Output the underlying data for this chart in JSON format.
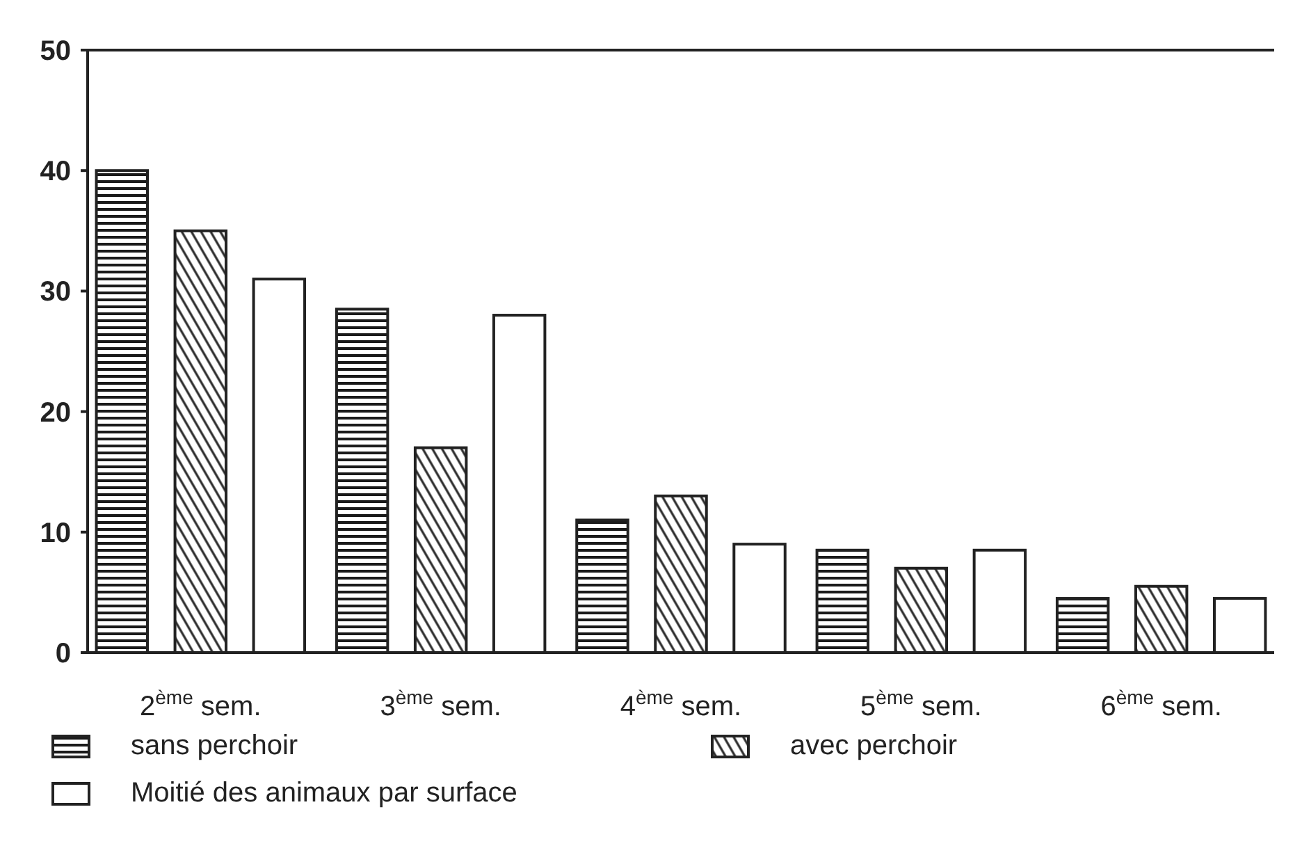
{
  "chart_data": {
    "type": "bar",
    "categories": [
      "2$^{ème}$ sem.",
      "3$^{ème}$ sem.",
      "4$^{ème}$ sem.",
      "5$^{ème}$ sem.",
      "6$^{ème}$ sem."
    ],
    "series": [
      {
        "name": "sans perchoir",
        "color": "#1a1a1a",
        "values": [
          40,
          28.5,
          11,
          8.5,
          4.5
        ]
      },
      {
        "name": "avec perchoir",
        "color": "#2b2b2b",
        "values": [
          35,
          17,
          13,
          7,
          5.5
        ]
      },
      {
        "name": "Moitié des animaux par surface",
        "color": "#ffffff",
        "values": [
          31,
          28,
          9,
          8.5,
          4.5
        ]
      }
    ],
    "ylim": [
      0,
      50
    ],
    "yticks": [
      0,
      10,
      20,
      30,
      40,
      50
    ],
    "legend": "bottom"
  }
}
